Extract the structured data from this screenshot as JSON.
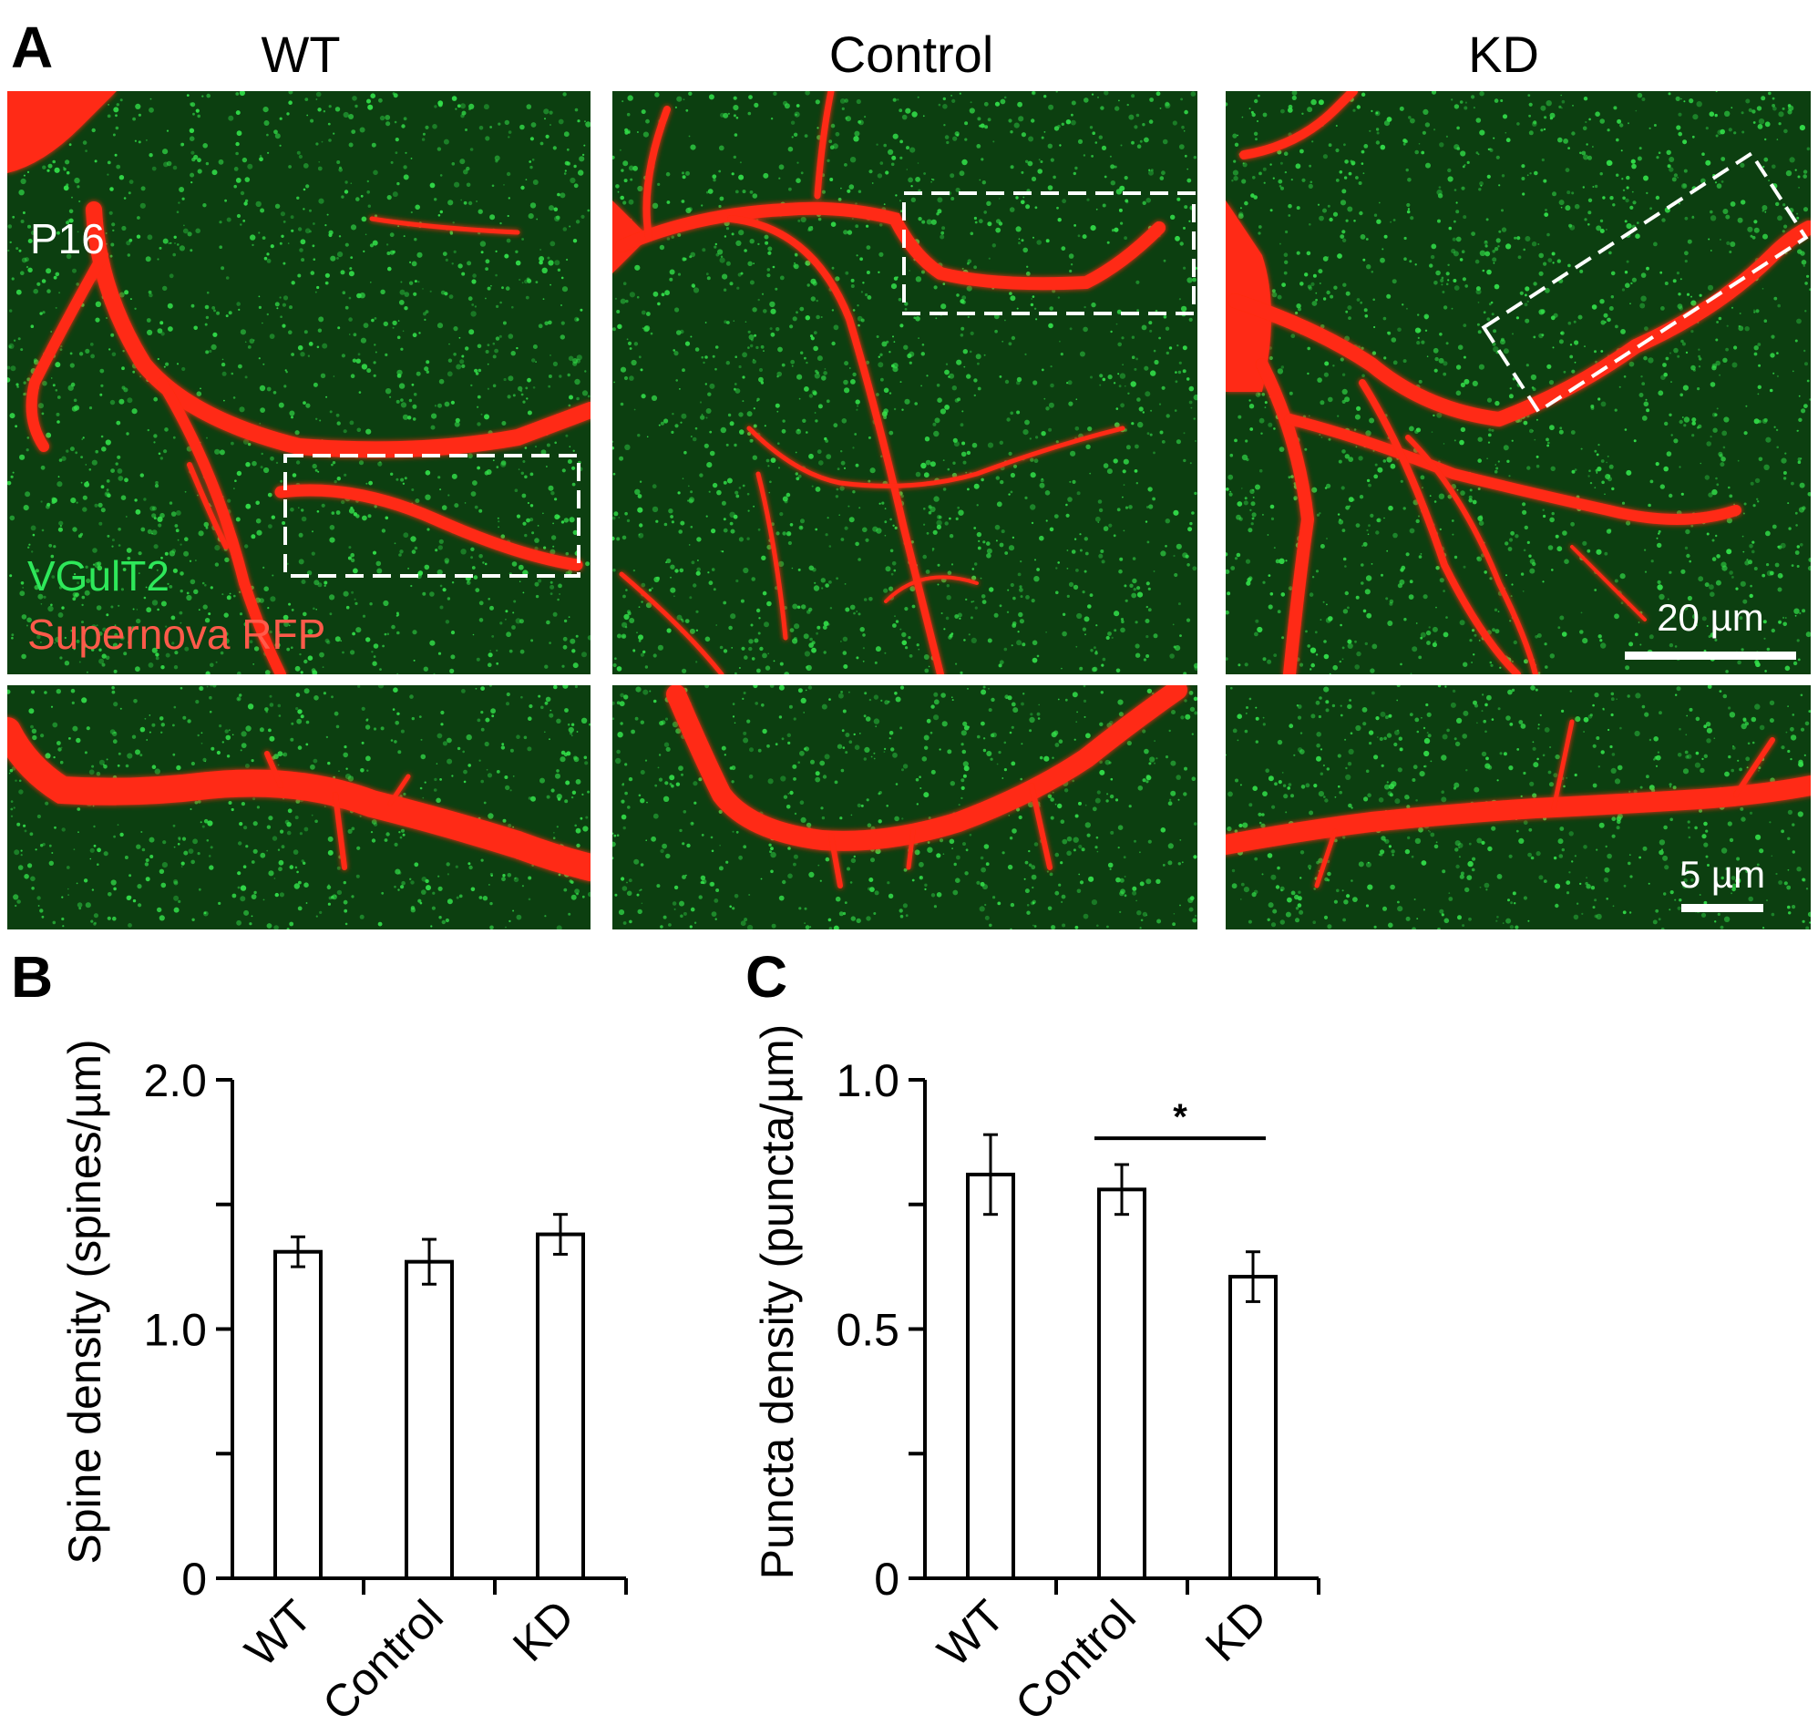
{
  "figure": {
    "panel_A": {
      "letter": "A",
      "columns": [
        "WT",
        "Control",
        "KD"
      ],
      "age_label": "P16",
      "channel_labels": {
        "green": "VGulT2",
        "red": "Supernova RFP"
      },
      "scale_bars": {
        "overview": "20 µm",
        "zoom": "5 µm"
      },
      "colors": {
        "background": "#0b3d0e",
        "green_puncta": "#33e04a",
        "red_neuron": "#ff2a12",
        "roi_box": "#ffffff",
        "green_label": "#2ee85a",
        "red_label": "#ff5a4a"
      }
    },
    "panel_B": {
      "letter": "B"
    },
    "panel_C": {
      "letter": "C"
    }
  },
  "chart_data": [
    {
      "type": "bar",
      "panel": "B",
      "categories": [
        "WT",
        "Control",
        "KD"
      ],
      "values": [
        1.31,
        1.27,
        1.38
      ],
      "errors": [
        0.06,
        0.09,
        0.08
      ],
      "ylabel": "Spine density (spines/µm)",
      "ylim": [
        0,
        2.0
      ],
      "yticks": [
        0,
        1.0,
        2.0
      ],
      "ytick_labels": [
        "0",
        "1.0",
        "2.0"
      ],
      "bar_fill": "#ffffff",
      "bar_stroke": "#000000"
    },
    {
      "type": "bar",
      "panel": "C",
      "categories": [
        "WT",
        "Control",
        "KD"
      ],
      "values": [
        0.81,
        0.78,
        0.605
      ],
      "errors": [
        0.08,
        0.05,
        0.05
      ],
      "ylabel": "Puncta density (puncta/µm)",
      "ylim": [
        0,
        1.0
      ],
      "yticks": [
        0,
        0.5,
        1.0
      ],
      "ytick_labels": [
        "0",
        "0.5",
        "1.0"
      ],
      "significance": {
        "from": "Control",
        "to": "KD",
        "label": "*"
      },
      "bar_fill": "#ffffff",
      "bar_stroke": "#000000"
    }
  ]
}
